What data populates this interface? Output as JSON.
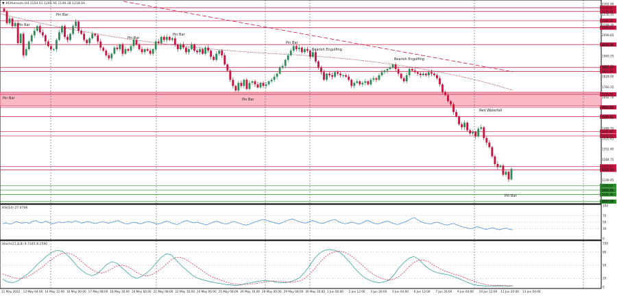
{
  "header": {
    "title": "▼ #Ethereum,H4  1154.51  1245.91  1149.18  1218.04"
  },
  "chart_data": {
    "type": "candlestick",
    "symbol": "#Ethereum",
    "timeframe": "H4",
    "ylim": [
      1000.0,
      2302.9
    ],
    "price_ticks": [
      "2302.90",
      "2235.55",
      "2168.30",
      "2099.85",
      "2033.60",
      "1960.35",
      "1897.70",
      "1828.00",
      "1760.35",
      "1692.70",
      "1625.50",
      "1557.40",
      "1489.75",
      "1420.45",
      "1352.40",
      "1284.75",
      "1217.10",
      "1149.45",
      "1081.80",
      "1015.10"
    ],
    "time_labels": [
      "11 May 2022",
      "13 May 04:00",
      "14 May 12:00",
      "16 May 00:00",
      "17 May 08:00",
      "18 May 16:00",
      "20 May 00:00",
      "21 May 08:00",
      "22 May 16:00",
      "24 May 00:00",
      "25 May 08:00",
      "26 May 16:00",
      "28 May 00:00",
      "29 May 08:00",
      "30 May 20:00",
      "1 Jun 00:00",
      "2 Jun 12:00",
      "3 Jun 20:00",
      "5 Jun 04:00",
      "6 Jun 12:00",
      "7 Jun 20:00",
      "9 Jun 04:00",
      "10 Jun 12:00",
      "11 Jun 20:00",
      "13 Jun 04:00"
    ],
    "levels": [
      {
        "price": 2270.5,
        "label": "2270.05",
        "color": "#c8143c"
      },
      {
        "price": 2246.0,
        "label": "2246.68",
        "color": "#c8143c"
      },
      {
        "price": 2186.0,
        "label": "2186.15",
        "color": "#c8143c"
      },
      {
        "price": 2140.0,
        "label": "2140.45",
        "color": "#c8143c"
      },
      {
        "price": 2030.0,
        "label": "2030.20",
        "color": "#c8143c"
      },
      {
        "price": 1880.0,
        "label": "1881.45",
        "color": "#c8143c"
      },
      {
        "price": 1855.0,
        "label": "1863.00",
        "color": "#c8143c"
      },
      {
        "price": 1705.0,
        "label": "1705.89",
        "color": "#c8143c"
      },
      {
        "price": 1620.0,
        "label": "1621.17",
        "color": "#c8143c"
      },
      {
        "price": 1560.0,
        "label": "1560.45",
        "color": "#c8143c"
      },
      {
        "price": 1462.0,
        "label": "1455.50",
        "color": "#c8143c"
      },
      {
        "price": 1433.0,
        "label": "1432.42",
        "color": "#c8143c"
      },
      {
        "price": 1235.0,
        "label": "1235.03",
        "color": "#c8143c"
      },
      {
        "price": 1212.0,
        "label": "1218.04",
        "color": "#c8143c"
      },
      {
        "price": 1108.0,
        "label": "1109.62",
        "color": "#228b22"
      },
      {
        "price": 1080.0,
        "label": "1077.55",
        "color": "#228b22"
      },
      {
        "price": 1052.0,
        "label": "1046.38",
        "color": "#228b22"
      },
      {
        "price": 1005.0,
        "label": "1005.00",
        "color": "#228b22"
      }
    ],
    "resistance_zone": [
      1650.0,
      1745.0
    ],
    "close_path": [
      2245,
      2170,
      2200,
      2150,
      2170,
      2040,
      2100,
      1960,
      2000,
      2050,
      2090,
      2120,
      2150,
      2110,
      2090,
      2050,
      2020,
      2000,
      2000,
      2060,
      2110,
      2150,
      2080,
      2060,
      2100,
      2150,
      2180,
      2120,
      2100,
      2060,
      2040,
      2070,
      2100,
      2090,
      2050,
      2010,
      1990,
      1960,
      1940,
      1970,
      2010,
      2000,
      2030,
      1970,
      2000,
      1990,
      2020,
      2060,
      2030,
      2000,
      1980,
      2000,
      1990,
      1970,
      2000,
      2050,
      2040,
      2080,
      2060,
      2080,
      2060,
      2070,
      2030,
      2000,
      2030,
      2010,
      1980,
      2000,
      2030,
      1990,
      1980,
      2000,
      1970,
      2010,
      1990,
      1950,
      1930,
      1970,
      1990,
      1960,
      1900,
      1860,
      1800,
      1760,
      1730,
      1780,
      1760,
      1800,
      1740,
      1780,
      1790,
      1770,
      1750,
      1780,
      1760,
      1770,
      1790,
      1800,
      1820,
      1840,
      1880,
      1890,
      1930,
      1960,
      1990,
      2020,
      2000,
      2010,
      1980,
      2000,
      1990,
      1950,
      1980,
      1920,
      1880,
      1850,
      1800,
      1840,
      1830,
      1820,
      1850,
      1840,
      1830,
      1830,
      1820,
      1800,
      1760,
      1780,
      1790,
      1770,
      1780,
      1790,
      1770,
      1800,
      1810,
      1800,
      1830,
      1850,
      1860,
      1870,
      1880,
      1900,
      1870,
      1840,
      1810,
      1790,
      1830,
      1870,
      1860,
      1850,
      1840,
      1830,
      1840,
      1830,
      1850,
      1840,
      1830,
      1810,
      1770,
      1720,
      1700,
      1660,
      1640,
      1590,
      1560,
      1510,
      1490,
      1520,
      1470,
      1450,
      1460,
      1430,
      1480,
      1490,
      1420,
      1390,
      1360,
      1300,
      1250,
      1230,
      1240,
      1180,
      1200,
      1150,
      1218
    ],
    "annotations": [
      "Pin Bar",
      "Pin Bar",
      "Pin Bar",
      "Pin Bar",
      "Pin Bar",
      "Pin Bar",
      "Bearish Engulfing",
      "Bearish Engulfing",
      "Pin Bar",
      "Red Waterfall",
      "Pin Bar"
    ]
  },
  "rsi": {
    "label": "RSI(14) 27.0706",
    "ticks": [
      "100",
      "70",
      "50",
      "30",
      "0"
    ],
    "ylim": [
      0,
      100
    ],
    "values": [
      45,
      48,
      44,
      46,
      52,
      49,
      47,
      50,
      46,
      52,
      55,
      50,
      48,
      53,
      49,
      45,
      47,
      51,
      48,
      50,
      52,
      49,
      54,
      51,
      47,
      50,
      52,
      49,
      46,
      48,
      51,
      50,
      47,
      49,
      52,
      55,
      50,
      46,
      44,
      48,
      50,
      47,
      45,
      49,
      52,
      50,
      47,
      44,
      46,
      51,
      53,
      49,
      45,
      43,
      47,
      52,
      55,
      51,
      48,
      50,
      47,
      44,
      42,
      46,
      50,
      53,
      49,
      46,
      44,
      48,
      52,
      50,
      46,
      43,
      41,
      44,
      48,
      52,
      55,
      58,
      56,
      53,
      50,
      47,
      45,
      49,
      53,
      57,
      60,
      56,
      52,
      49,
      47,
      51,
      55,
      52,
      48,
      46,
      49,
      53,
      56,
      58,
      52,
      48,
      45,
      47,
      50,
      48,
      44,
      46,
      52,
      55,
      50,
      46,
      44,
      48,
      51,
      53,
      49,
      45,
      43,
      46,
      50,
      54,
      60,
      64,
      58,
      52,
      48,
      46,
      44,
      48,
      50,
      47,
      43,
      41,
      44,
      46,
      42,
      38,
      35,
      33,
      30,
      32,
      36,
      34,
      30,
      28,
      31,
      33,
      29,
      27,
      30,
      32,
      28,
      27
    ]
  },
  "stoch": {
    "label": "Stoch(21,8,8) 9.7345 8.1590",
    "ticks": [
      "100",
      "80",
      "50",
      "20",
      "0"
    ],
    "ylim": [
      0,
      100
    ],
    "k": [
      18,
      12,
      10,
      14,
      22,
      30,
      40,
      52,
      62,
      72,
      80,
      84,
      82,
      74,
      62,
      48,
      38,
      30,
      26,
      30,
      40,
      52,
      58,
      55,
      45,
      35,
      25,
      20,
      24,
      32,
      42,
      55,
      68,
      76,
      74,
      62,
      50,
      40,
      30,
      22,
      18,
      15,
      12,
      10,
      8,
      6,
      5,
      4,
      5,
      8,
      10,
      12,
      14,
      15,
      14,
      12,
      10,
      10,
      12,
      16,
      22,
      34,
      50,
      66,
      78,
      84,
      86,
      84,
      80,
      70,
      58,
      44,
      32,
      22,
      16,
      12,
      10,
      12,
      16,
      28,
      44,
      56,
      66,
      70,
      64,
      52,
      42,
      36,
      32,
      30,
      28,
      24,
      20,
      15,
      10,
      6,
      4,
      3,
      2,
      2,
      3,
      2,
      2,
      3
    ],
    "d": [
      30,
      26,
      22,
      20,
      20,
      24,
      30,
      38,
      46,
      56,
      64,
      72,
      77,
      78,
      75,
      68,
      58,
      48,
      40,
      34,
      32,
      36,
      42,
      48,
      50,
      48,
      42,
      34,
      28,
      25,
      28,
      34,
      42,
      52,
      62,
      68,
      68,
      63,
      56,
      48,
      40,
      32,
      25,
      20,
      16,
      12,
      9,
      7,
      6,
      6,
      7,
      8,
      10,
      12,
      14,
      14,
      13,
      12,
      11,
      12,
      14,
      20,
      30,
      42,
      56,
      68,
      76,
      81,
      82,
      80,
      74,
      66,
      56,
      46,
      36,
      28,
      22,
      18,
      16,
      18,
      24,
      34,
      46,
      56,
      62,
      62,
      58,
      50,
      44,
      38,
      34,
      30,
      27,
      23,
      18,
      14,
      10,
      7,
      5,
      4,
      4,
      4,
      3,
      3
    ]
  },
  "colors": {
    "bull": "#2e8b57",
    "bear": "#c8143c",
    "rsi": "#4f8fd6",
    "stoch_k": "#3aa0a0",
    "stoch_d": "#d9314f",
    "level_red": "#c8143c",
    "level_green": "#228b22"
  }
}
